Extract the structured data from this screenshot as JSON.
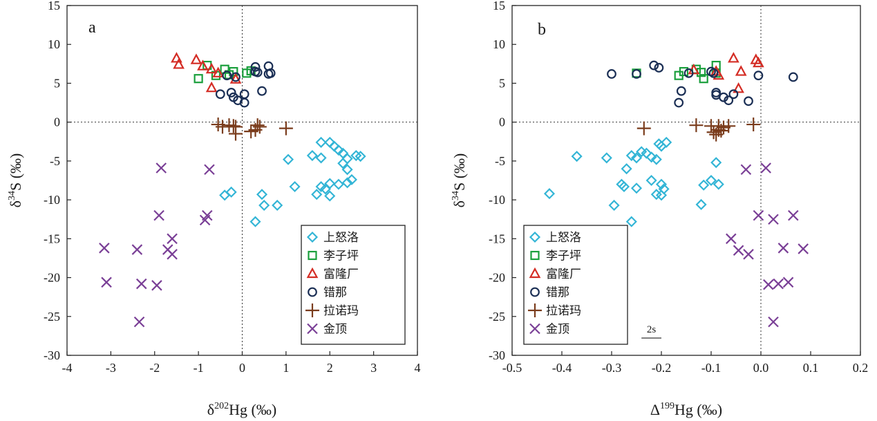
{
  "chart_data": [
    {
      "type": "scatter",
      "panel_label": "a",
      "xlabel": "δ²⁰²Hg (‰)",
      "xlabel_base": "δ",
      "xlabel_sup": "202",
      "xlabel_rest": "Hg (‰)",
      "ylabel": "δ³⁴S (‰)",
      "ylabel_base": "δ",
      "ylabel_sup": "34",
      "ylabel_rest": "S (‰)",
      "xlim": [
        -4,
        4
      ],
      "ylim": [
        -30,
        15
      ],
      "xticks": [
        "-4",
        "-3",
        "-2",
        "-1",
        "0",
        "1",
        "2",
        "3",
        "4"
      ],
      "yticks": [
        "15",
        "10",
        "5",
        "0",
        "-5",
        "-10",
        "-15",
        "-20",
        "-25",
        "-30"
      ],
      "zero_lines": true,
      "legend_position": "bottom-right",
      "series": [
        {
          "name": "上怒洛",
          "marker": "diamond",
          "color": "#33b5d6",
          "points": [
            [
              1.8,
              -2.6
            ],
            [
              2.0,
              -2.6
            ],
            [
              2.1,
              -3.1
            ],
            [
              2.2,
              -3.6
            ],
            [
              2.3,
              -4.0
            ],
            [
              2.6,
              -4.3
            ],
            [
              2.7,
              -4.4
            ],
            [
              2.4,
              -4.7
            ],
            [
              1.6,
              -4.3
            ],
            [
              1.8,
              -4.6
            ],
            [
              1.05,
              -4.8
            ],
            [
              2.3,
              -5.3
            ],
            [
              2.4,
              -6.1
            ],
            [
              1.2,
              -8.3
            ],
            [
              1.8,
              -8.3
            ],
            [
              1.9,
              -8.6
            ],
            [
              2.0,
              -7.9
            ],
            [
              2.2,
              -8.0
            ],
            [
              2.4,
              -7.8
            ],
            [
              2.5,
              -7.4
            ],
            [
              1.7,
              -9.3
            ],
            [
              2.0,
              -9.5
            ],
            [
              0.45,
              -9.3
            ],
            [
              -0.25,
              -9.0
            ],
            [
              -0.4,
              -9.4
            ],
            [
              0.5,
              -10.7
            ],
            [
              0.8,
              -10.7
            ],
            [
              0.3,
              -12.8
            ]
          ]
        },
        {
          "name": "李子坪",
          "marker": "square",
          "color": "#1a9f3c",
          "points": [
            [
              -0.8,
              7.3
            ],
            [
              -0.4,
              6.8
            ],
            [
              -0.2,
              6.5
            ],
            [
              -0.3,
              6.1
            ],
            [
              0.1,
              6.3
            ],
            [
              -0.6,
              6.0
            ],
            [
              -1.0,
              5.6
            ],
            [
              0.2,
              6.6
            ]
          ]
        },
        {
          "name": "富隆厂",
          "marker": "triangle",
          "color": "#d42c24",
          "points": [
            [
              -1.5,
              8.2
            ],
            [
              -1.05,
              8.0
            ],
            [
              -1.45,
              7.4
            ],
            [
              -0.9,
              7.2
            ],
            [
              -0.7,
              6.8
            ],
            [
              -0.55,
              6.3
            ],
            [
              -0.15,
              5.5
            ],
            [
              -0.7,
              4.4
            ]
          ]
        },
        {
          "name": "错那",
          "marker": "circle",
          "color": "#1b2f55",
          "points": [
            [
              0.3,
              7.1
            ],
            [
              0.6,
              7.2
            ],
            [
              0.3,
              6.5
            ],
            [
              0.35,
              6.4
            ],
            [
              0.6,
              6.2
            ],
            [
              0.65,
              6.3
            ],
            [
              -0.35,
              6.0
            ],
            [
              -0.15,
              5.8
            ],
            [
              -0.5,
              3.6
            ],
            [
              -0.25,
              3.8
            ],
            [
              -0.2,
              3.2
            ],
            [
              0.05,
              3.6
            ],
            [
              -0.1,
              2.8
            ],
            [
              0.05,
              2.5
            ],
            [
              0.45,
              4.0
            ]
          ]
        },
        {
          "name": "拉诺玛",
          "marker": "plus",
          "color": "#7a3c1c",
          "points": [
            [
              -0.55,
              -0.3
            ],
            [
              -0.45,
              -0.6
            ],
            [
              -0.3,
              -0.4
            ],
            [
              -0.2,
              -0.5
            ],
            [
              -0.15,
              -0.6
            ],
            [
              0.35,
              -0.4
            ],
            [
              0.4,
              -0.6
            ],
            [
              -0.15,
              -1.5
            ],
            [
              0.2,
              -1.2
            ],
            [
              0.3,
              -1.0
            ],
            [
              1.0,
              -0.8
            ]
          ]
        },
        {
          "name": "金顶",
          "marker": "cross",
          "color": "#7a3f96",
          "points": [
            [
              -1.85,
              -5.9
            ],
            [
              -0.75,
              -6.1
            ],
            [
              -1.9,
              -12.0
            ],
            [
              -0.8,
              -12.0
            ],
            [
              -0.85,
              -12.6
            ],
            [
              -1.6,
              -15.0
            ],
            [
              -1.7,
              -16.4
            ],
            [
              -1.6,
              -17.0
            ],
            [
              -3.15,
              -16.2
            ],
            [
              -2.4,
              -16.4
            ],
            [
              -3.1,
              -20.6
            ],
            [
              -2.3,
              -20.8
            ],
            [
              -1.95,
              -21.0
            ],
            [
              -2.35,
              -25.7
            ]
          ]
        }
      ]
    },
    {
      "type": "scatter",
      "panel_label": "b",
      "xlabel": "Δ¹⁹⁹Hg (‰)",
      "xlabel_base": "Δ",
      "xlabel_sup": "199",
      "xlabel_rest": "Hg (‰)",
      "ylabel": "δ³⁴S (‰)",
      "ylabel_base": "δ",
      "ylabel_sup": "34",
      "ylabel_rest": "S (‰)",
      "xlim": [
        -0.5,
        0.2
      ],
      "ylim": [
        -30,
        15
      ],
      "xticks": [
        "-0.5",
        "-0.4",
        "-0.3",
        "-0.2",
        "-0.1",
        "0.0",
        "0.1",
        "0.2"
      ],
      "yticks": [
        "15",
        "10",
        "5",
        "0",
        "-5",
        "-10",
        "-15",
        "-20",
        "-25",
        "-30"
      ],
      "zero_lines": true,
      "legend_position": "bottom-left",
      "scale_bar_label": "2s",
      "scale_bar_value": 0.02,
      "series": [
        {
          "name": "上怒洛",
          "marker": "diamond",
          "color": "#33b5d6",
          "points": [
            [
              -0.37,
              -4.4
            ],
            [
              -0.31,
              -4.6
            ],
            [
              -0.26,
              -4.3
            ],
            [
              -0.24,
              -3.8
            ],
            [
              -0.23,
              -4.0
            ],
            [
              -0.22,
              -4.5
            ],
            [
              -0.21,
              -4.8
            ],
            [
              -0.2,
              -3.1
            ],
            [
              -0.19,
              -2.6
            ],
            [
              -0.205,
              -2.8
            ],
            [
              -0.25,
              -4.6
            ],
            [
              -0.27,
              -6.0
            ],
            [
              -0.28,
              -8.0
            ],
            [
              -0.275,
              -8.3
            ],
            [
              -0.25,
              -8.5
            ],
            [
              -0.22,
              -7.5
            ],
            [
              -0.2,
              -8.0
            ],
            [
              -0.195,
              -8.6
            ],
            [
              -0.115,
              -8.1
            ],
            [
              -0.1,
              -7.5
            ],
            [
              -0.085,
              -8.0
            ],
            [
              -0.09,
              -5.2
            ],
            [
              -0.425,
              -9.2
            ],
            [
              -0.21,
              -9.3
            ],
            [
              -0.2,
              -9.4
            ],
            [
              -0.295,
              -10.7
            ],
            [
              -0.12,
              -10.6
            ],
            [
              -0.26,
              -12.8
            ]
          ]
        },
        {
          "name": "李子坪",
          "marker": "square",
          "color": "#1a9f3c",
          "points": [
            [
              -0.25,
              6.3
            ],
            [
              -0.165,
              6.0
            ],
            [
              -0.155,
              6.5
            ],
            [
              -0.13,
              6.8
            ],
            [
              -0.12,
              6.4
            ],
            [
              -0.115,
              5.6
            ],
            [
              -0.09,
              7.3
            ],
            [
              -0.09,
              6.3
            ]
          ]
        },
        {
          "name": "富隆厂",
          "marker": "triangle",
          "color": "#d42c24",
          "points": [
            [
              -0.135,
              6.7
            ],
            [
              -0.09,
              6.5
            ],
            [
              -0.085,
              6.0
            ],
            [
              -0.055,
              8.2
            ],
            [
              -0.01,
              8.0
            ],
            [
              -0.005,
              7.6
            ],
            [
              -0.04,
              6.5
            ],
            [
              -0.045,
              4.3
            ]
          ]
        },
        {
          "name": "错那",
          "marker": "circle",
          "color": "#1b2f55",
          "points": [
            [
              -0.3,
              6.2
            ],
            [
              -0.25,
              6.2
            ],
            [
              -0.215,
              7.3
            ],
            [
              -0.205,
              7.0
            ],
            [
              -0.145,
              6.3
            ],
            [
              -0.1,
              6.5
            ],
            [
              -0.095,
              6.3
            ],
            [
              -0.005,
              6.0
            ],
            [
              0.065,
              5.8
            ],
            [
              -0.16,
              4.0
            ],
            [
              -0.09,
              3.8
            ],
            [
              -0.09,
              3.5
            ],
            [
              -0.075,
              3.2
            ],
            [
              -0.055,
              3.6
            ],
            [
              -0.065,
              2.8
            ],
            [
              -0.165,
              2.5
            ],
            [
              -0.025,
              2.7
            ]
          ]
        },
        {
          "name": "拉诺玛",
          "marker": "plus",
          "color": "#7a3c1c",
          "points": [
            [
              -0.235,
              -0.8
            ],
            [
              -0.13,
              -0.4
            ],
            [
              -0.1,
              -0.5
            ],
            [
              -0.085,
              -0.5
            ],
            [
              -0.075,
              -0.7
            ],
            [
              -0.065,
              -0.5
            ],
            [
              -0.015,
              -0.3
            ],
            [
              -0.095,
              -1.3
            ],
            [
              -0.085,
              -1.0
            ],
            [
              -0.08,
              -1.1
            ],
            [
              -0.09,
              -1.6
            ]
          ]
        },
        {
          "name": "金顶",
          "marker": "cross",
          "color": "#7a3f96",
          "points": [
            [
              -0.03,
              -6.1
            ],
            [
              0.01,
              -5.9
            ],
            [
              -0.005,
              -12.0
            ],
            [
              0.025,
              -12.5
            ],
            [
              0.065,
              -12.0
            ],
            [
              -0.06,
              -15.0
            ],
            [
              -0.045,
              -16.5
            ],
            [
              -0.025,
              -17.0
            ],
            [
              0.045,
              -16.2
            ],
            [
              0.085,
              -16.3
            ],
            [
              0.015,
              -20.9
            ],
            [
              0.035,
              -20.8
            ],
            [
              0.055,
              -20.6
            ],
            [
              0.025,
              -25.7
            ]
          ]
        }
      ]
    }
  ]
}
